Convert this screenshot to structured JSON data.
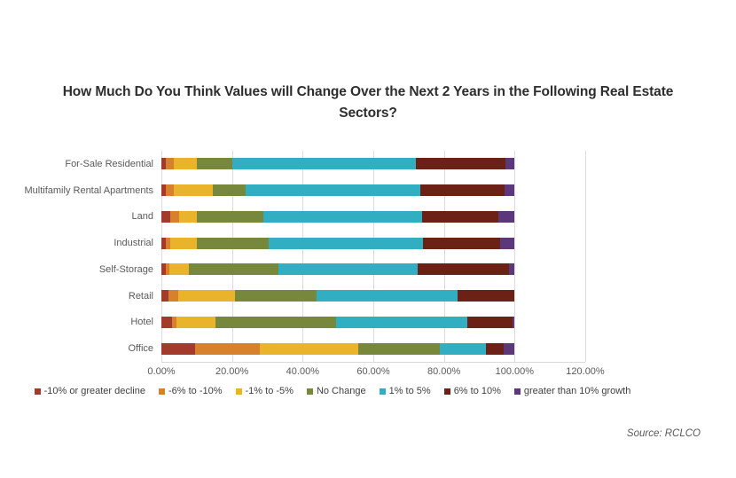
{
  "chart_data": {
    "type": "bar",
    "orientation": "horizontal",
    "stacked": true,
    "title": "How Much Do You Think Values will Change Over the Next 2 Years in the Following Real Estate Sectors?",
    "categories": [
      "For-Sale Residential",
      "Multifamily Rental Apartments",
      "Land",
      "Industrial",
      "Self-Storage",
      "Retail",
      "Hotel",
      "Office"
    ],
    "series": [
      {
        "name": "-10% or greater decline",
        "color": "#A23B2B",
        "values": [
          1.3,
          1.3,
          2.5,
          1.3,
          1.3,
          2.0,
          3.0,
          9.5
        ]
      },
      {
        "name": "-6% to -10%",
        "color": "#D8812C",
        "values": [
          2.3,
          2.3,
          2.5,
          1.3,
          1.0,
          2.8,
          1.3,
          18.4
        ]
      },
      {
        "name": "-1% to -5%",
        "color": "#E9B32B",
        "values": [
          6.5,
          10.9,
          5.1,
          7.5,
          5.6,
          16.1,
          10.9,
          27.9
        ]
      },
      {
        "name": "No Change",
        "color": "#77873B",
        "values": [
          10.0,
          9.4,
          18.8,
          20.4,
          25.2,
          23.0,
          34.2,
          23.1
        ]
      },
      {
        "name": "1% to 5%",
        "color": "#31AEC1",
        "values": [
          52.0,
          49.4,
          44.9,
          43.6,
          39.5,
          40.0,
          37.3,
          13.1
        ]
      },
      {
        "name": "6% to 10%",
        "color": "#6B2116",
        "values": [
          25.3,
          23.8,
          21.5,
          21.9,
          25.8,
          16.1,
          12.8,
          5.0
        ]
      },
      {
        "name": "greater than 10% growth",
        "color": "#5C3779",
        "values": [
          2.6,
          2.9,
          4.7,
          4.0,
          1.6,
          0.0,
          0.5,
          3.0
        ]
      }
    ],
    "x_ticks": [
      "0.00%",
      "20.00%",
      "40.00%",
      "60.00%",
      "80.00%",
      "100.00%",
      "120.00%"
    ],
    "xlim": [
      0,
      120
    ],
    "grid": "vertical",
    "legend_position": "bottom"
  },
  "source": {
    "label": "Source: RCLCO"
  }
}
